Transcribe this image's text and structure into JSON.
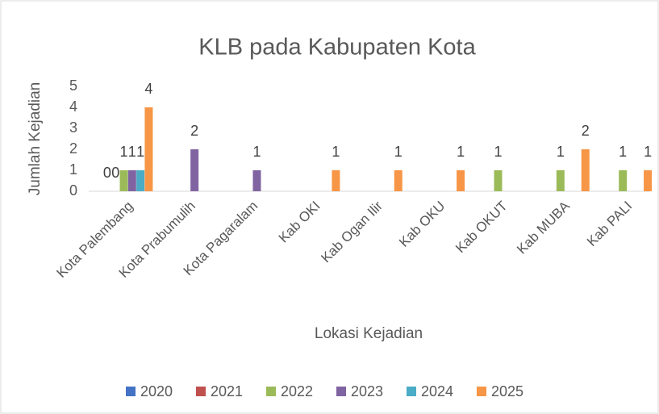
{
  "chart_data": {
    "type": "bar",
    "title": "KLB pada Kabupaten Kota",
    "x_label": "Lokasi Kejadian",
    "y_label": "Jumlah Kejadian",
    "categories": [
      "Kota Palembang",
      "Kota Prabumulih",
      "Kota Pagaralam",
      "Kab OKI",
      "Kab Ogan Ilir",
      "Kab OKU",
      "Kab OKUT",
      "Kab MUBA",
      "Kab PALI"
    ],
    "series": [
      {
        "name": "2020",
        "color": "#4472c4",
        "values": [
          0,
          null,
          null,
          null,
          null,
          null,
          null,
          null,
          null
        ]
      },
      {
        "name": "2021",
        "color": "#c0504d",
        "values": [
          0,
          null,
          null,
          null,
          null,
          null,
          null,
          null,
          null
        ]
      },
      {
        "name": "2022",
        "color": "#9bbb59",
        "values": [
          1,
          null,
          null,
          null,
          null,
          null,
          1,
          1,
          1
        ]
      },
      {
        "name": "2023",
        "color": "#8064a2",
        "values": [
          1,
          2,
          1,
          null,
          null,
          null,
          null,
          null,
          null
        ]
      },
      {
        "name": "2024",
        "color": "#4bacc6",
        "values": [
          1,
          null,
          null,
          null,
          null,
          null,
          null,
          null,
          null
        ]
      },
      {
        "name": "2025",
        "color": "#f79646",
        "values": [
          4,
          null,
          null,
          1,
          1,
          1,
          null,
          2,
          1
        ]
      }
    ],
    "ylim": [
      0,
      5
    ],
    "yticks": [
      0,
      1,
      2,
      3,
      4,
      5
    ],
    "grid": false,
    "legend": "bottom"
  }
}
